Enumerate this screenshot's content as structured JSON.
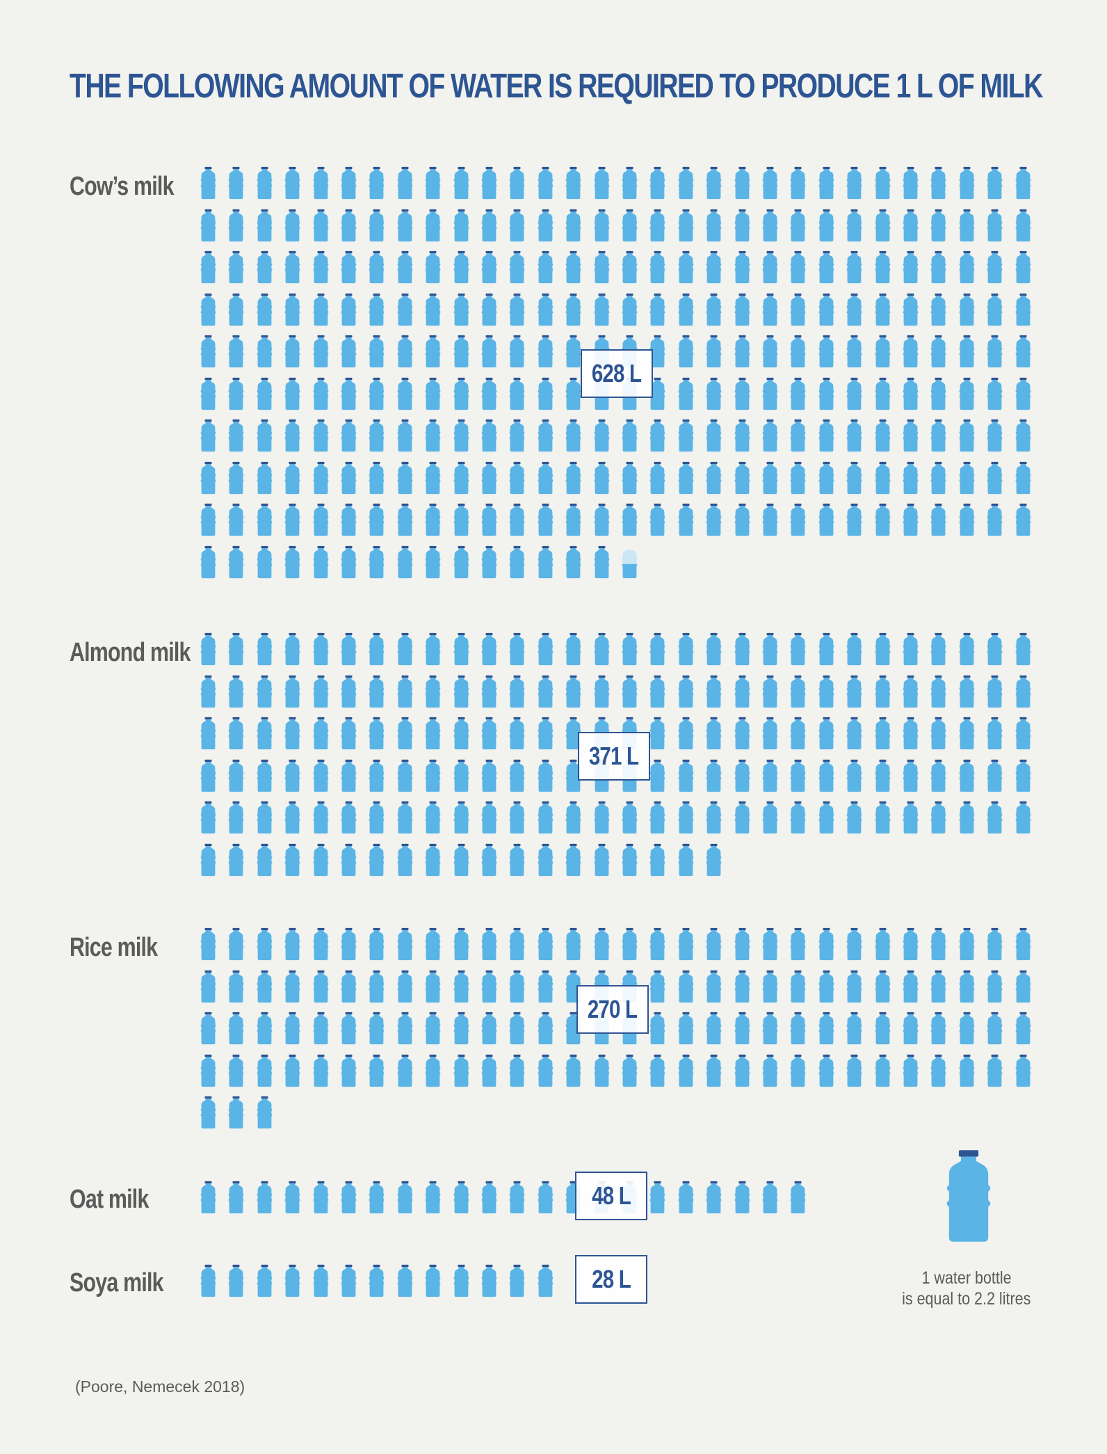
{
  "title": "THE FOLLOWING AMOUNT OF WATER IS REQUIRED TO PRODUCE 1 L OF MILK",
  "colors": {
    "title": "#2d5593",
    "label": "#5b5b5b",
    "bottle": "#5ab4e6",
    "bottle_cap": "#2d5593",
    "bottle_partial": "#cbe6f5",
    "background": "#f2f2ee"
  },
  "icon": "water-bottle-icon",
  "chart_data": {
    "type": "pictogram",
    "unit_per_icon_litres": 2.2,
    "categories": [
      "Cow’s milk",
      "Almond milk",
      "Rice milk",
      "Oat milk",
      "Soya milk"
    ],
    "values": [
      628,
      371,
      270,
      48,
      28
    ],
    "value_labels": [
      "628 L",
      "371 L",
      "270 L",
      "48 L",
      "28 L"
    ],
    "icons_shown": [
      285.5,
      169,
      123,
      22,
      13
    ],
    "icons_per_row": 30
  },
  "legend": {
    "line1": "1 water bottle",
    "line2": "is equal to 2.2 litres"
  },
  "source": "(Poore, Nemecek 2018)"
}
